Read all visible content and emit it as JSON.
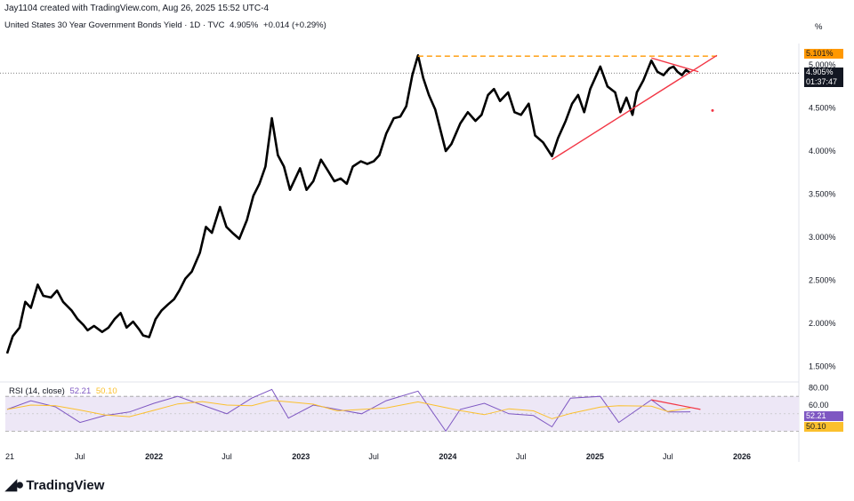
{
  "header": {
    "credit": "Jay1104 created with TradingView.com, Aug 26, 2025 15:52 UTC-4",
    "title": "United States 30 Year Government Bonds Yield · 1D · TVC",
    "last_value": "4.905%",
    "change": "+0.014 (+0.29%)"
  },
  "price_axis": {
    "unit_label": "%",
    "ticks": [
      "5.000%",
      "4.500%",
      "4.000%",
      "3.500%",
      "3.000%",
      "2.500%",
      "2.000%",
      "1.500%"
    ],
    "resistance_tag": "5.101%",
    "price_tag": "4.905%",
    "countdown_tag": "01:37:47"
  },
  "time_axis": {
    "labels": [
      "21",
      "Jul",
      "2022",
      "Jul",
      "2023",
      "Jul",
      "2024",
      "Jul",
      "2025",
      "Jul",
      "2026"
    ]
  },
  "rsi": {
    "label": "RSI (14, close)",
    "rsi_value": "52.21",
    "ma_value": "50.10",
    "ticks": [
      "80.00",
      "60.00"
    ],
    "tag_rsi": "52.21",
    "tag_ma": "50.10"
  },
  "colors": {
    "price_line": "#000000",
    "trendline": "#f23645",
    "resistance": "#ff9800",
    "rsi_line": "#7e57c2",
    "rsi_ma": "#fbc02d",
    "rsi_band": "#ede7f6"
  },
  "logo": {
    "text": "TradingView",
    "icon": "tradingview-logo-icon"
  },
  "chart_data": {
    "type": "line",
    "title": "United States 30 Year Government Bonds Yield",
    "ylabel": "%",
    "ylim": [
      1.35,
      5.45
    ],
    "grid": false,
    "series": [
      {
        "name": "United States 30 Year Government Bonds Yield",
        "x": [
          "2021-01-01",
          "2021-01-15",
          "2021-02-01",
          "2021-02-15",
          "2021-03-01",
          "2021-03-18",
          "2021-04-01",
          "2021-04-20",
          "2021-05-05",
          "2021-05-20",
          "2021-06-10",
          "2021-06-25",
          "2021-07-10",
          "2021-07-20",
          "2021-08-05",
          "2021-08-25",
          "2021-09-10",
          "2021-09-25",
          "2021-10-10",
          "2021-10-25",
          "2021-11-10",
          "2021-11-25",
          "2021-12-05",
          "2021-12-20",
          "2022-01-05",
          "2022-01-20",
          "2022-02-05",
          "2022-02-20",
          "2022-03-05",
          "2022-03-20",
          "2022-04-05",
          "2022-04-25",
          "2022-05-10",
          "2022-05-25",
          "2022-06-14",
          "2022-06-30",
          "2022-07-15",
          "2022-08-01",
          "2022-08-20",
          "2022-09-05",
          "2022-09-20",
          "2022-10-05",
          "2022-10-21",
          "2022-11-05",
          "2022-11-20",
          "2022-12-05",
          "2022-12-30",
          "2023-01-15",
          "2023-02-01",
          "2023-02-20",
          "2023-03-08",
          "2023-03-25",
          "2023-04-10",
          "2023-04-25",
          "2023-05-10",
          "2023-05-30",
          "2023-06-15",
          "2023-07-01",
          "2023-07-15",
          "2023-08-01",
          "2023-08-20",
          "2023-09-05",
          "2023-09-20",
          "2023-10-05",
          "2023-10-19",
          "2023-11-01",
          "2023-11-15",
          "2023-12-01",
          "2023-12-27",
          "2024-01-10",
          "2024-02-01",
          "2024-02-20",
          "2024-03-10",
          "2024-03-25",
          "2024-04-10",
          "2024-04-25",
          "2024-05-10",
          "2024-05-30",
          "2024-06-15",
          "2024-07-01",
          "2024-07-20",
          "2024-08-05",
          "2024-08-25",
          "2024-09-16",
          "2024-10-01",
          "2024-10-20",
          "2024-11-05",
          "2024-11-20",
          "2024-12-05",
          "2024-12-20",
          "2025-01-14",
          "2025-02-01",
          "2025-02-20",
          "2025-03-05",
          "2025-03-20",
          "2025-04-04",
          "2025-04-15",
          "2025-05-01",
          "2025-05-21",
          "2025-06-05",
          "2025-06-20",
          "2025-07-05",
          "2025-07-15",
          "2025-07-25",
          "2025-08-05",
          "2025-08-15",
          "2025-08-26"
        ],
        "values": [
          1.65,
          1.85,
          1.95,
          2.25,
          2.18,
          2.45,
          2.32,
          2.3,
          2.38,
          2.25,
          2.15,
          2.05,
          1.98,
          1.92,
          1.97,
          1.9,
          1.95,
          2.05,
          2.12,
          1.95,
          2.02,
          1.93,
          1.86,
          1.84,
          2.05,
          2.15,
          2.22,
          2.28,
          2.38,
          2.52,
          2.6,
          2.82,
          3.12,
          3.05,
          3.35,
          3.12,
          3.05,
          2.98,
          3.2,
          3.48,
          3.62,
          3.82,
          4.38,
          3.95,
          3.82,
          3.55,
          3.8,
          3.55,
          3.65,
          3.9,
          3.78,
          3.65,
          3.68,
          3.62,
          3.82,
          3.88,
          3.85,
          3.88,
          3.95,
          4.2,
          4.38,
          4.4,
          4.52,
          4.88,
          5.11,
          4.85,
          4.65,
          4.48,
          4.0,
          4.08,
          4.32,
          4.45,
          4.35,
          4.42,
          4.65,
          4.72,
          4.58,
          4.68,
          4.45,
          4.42,
          4.55,
          4.18,
          4.1,
          3.94,
          4.15,
          4.35,
          4.55,
          4.65,
          4.45,
          4.72,
          4.98,
          4.75,
          4.68,
          4.45,
          4.62,
          4.42,
          4.68,
          4.82,
          5.05,
          4.92,
          4.88,
          4.96,
          4.98,
          4.92,
          4.88,
          4.94,
          4.905
        ]
      }
    ],
    "lines": [
      {
        "name": "resistance",
        "from": [
          "2023-10-19",
          5.101
        ],
        "to": [
          "2025-10-31",
          5.101
        ]
      },
      {
        "name": "rising support",
        "from": [
          "2024-09-16",
          3.9
        ],
        "to": [
          "2025-10-31",
          5.11
        ]
      },
      {
        "name": "falling resistance",
        "from": [
          "2025-05-21",
          5.08
        ],
        "to": [
          "2025-09-15",
          4.92
        ]
      }
    ],
    "rsi": {
      "ylim": [
        20,
        85
      ],
      "ma_length": 14,
      "x": [
        "2021-01-01",
        "2021-03-01",
        "2021-05-01",
        "2021-07-01",
        "2021-09-01",
        "2021-11-01",
        "2022-01-01",
        "2022-03-01",
        "2022-05-01",
        "2022-07-01",
        "2022-09-01",
        "2022-10-21",
        "2022-12-01",
        "2023-02-01",
        "2023-04-01",
        "2023-06-01",
        "2023-08-01",
        "2023-10-19",
        "2023-12-27",
        "2024-02-01",
        "2024-04-01",
        "2024-06-01",
        "2024-08-01",
        "2024-09-16",
        "2024-11-01",
        "2025-01-14",
        "2025-03-01",
        "2025-05-21",
        "2025-07-01",
        "2025-08-26"
      ],
      "values": [
        55,
        65,
        58,
        40,
        48,
        52,
        62,
        70,
        60,
        50,
        68,
        78,
        45,
        60,
        55,
        50,
        65,
        76,
        30,
        55,
        62,
        50,
        48,
        35,
        68,
        70,
        40,
        66,
        52,
        52.21
      ]
    }
  }
}
